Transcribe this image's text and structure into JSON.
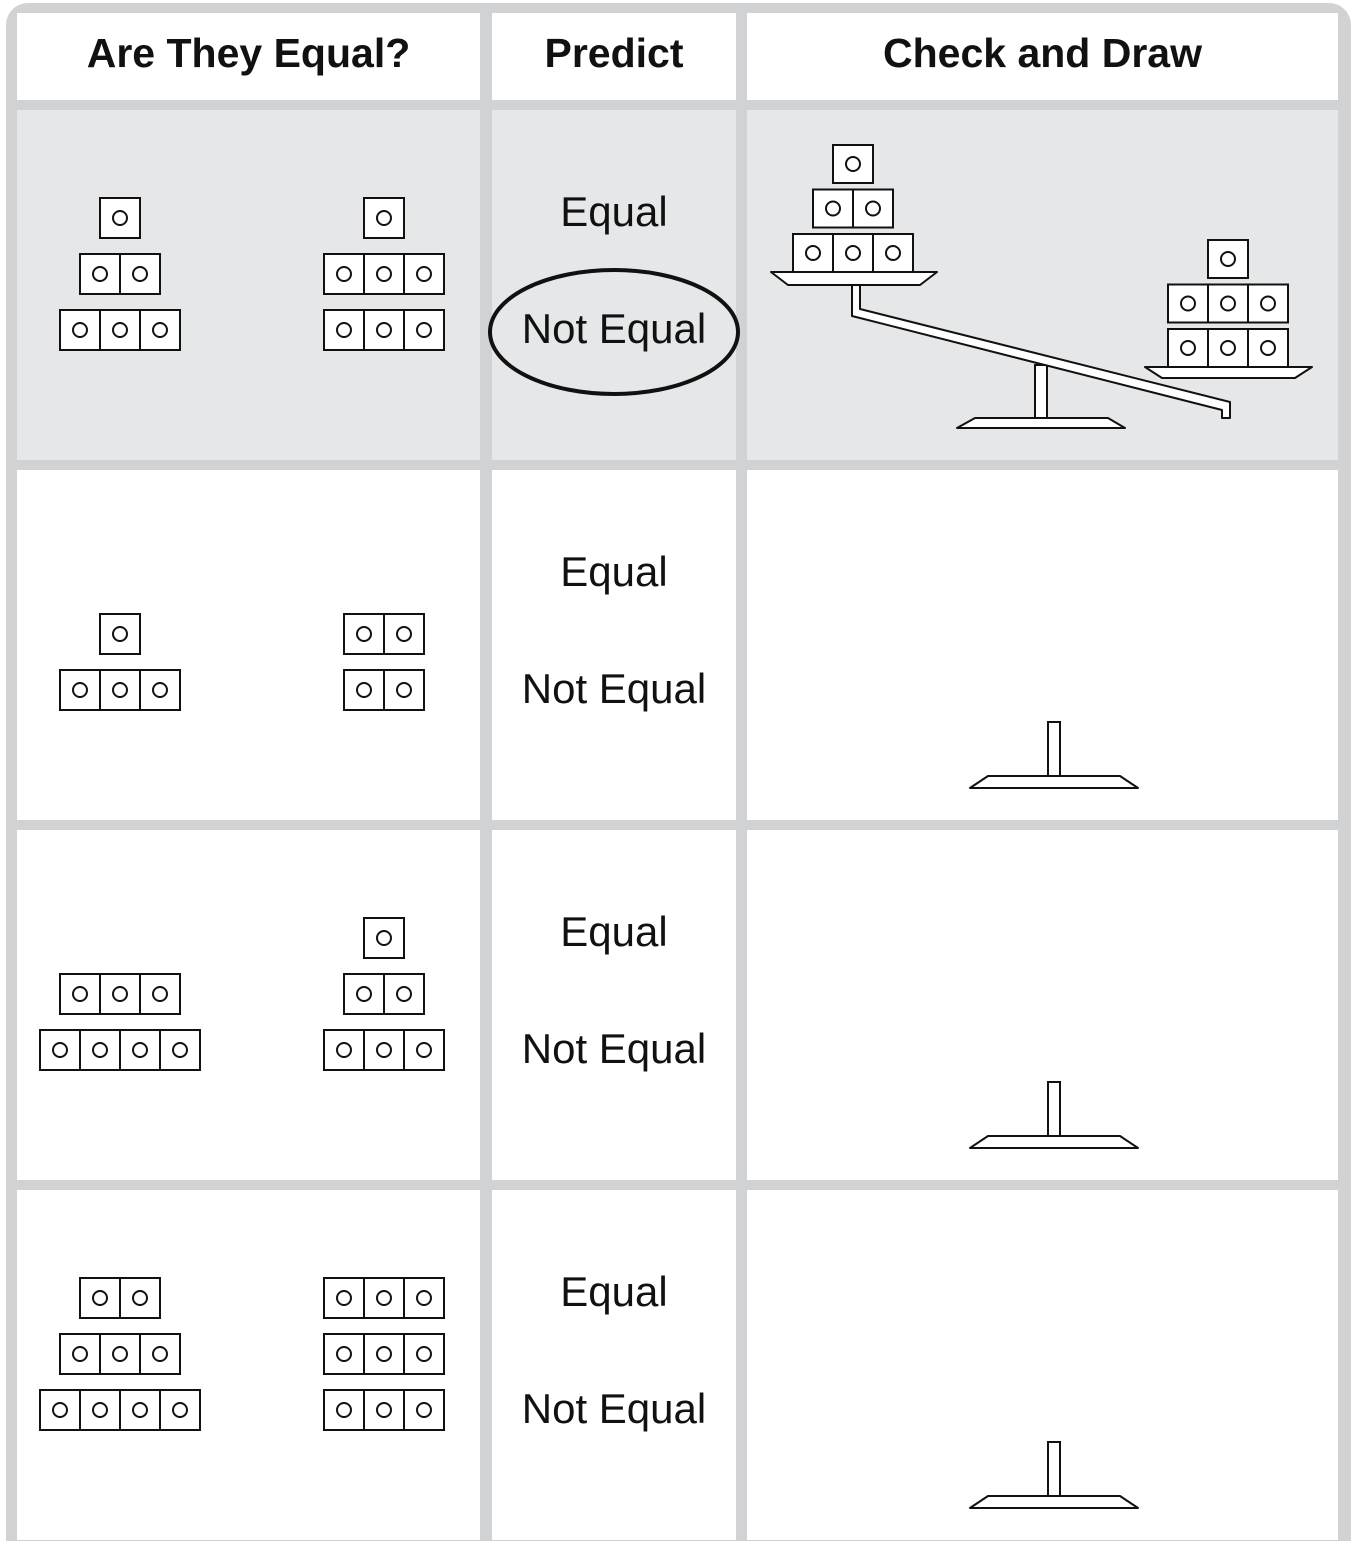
{
  "header": {
    "columns": [
      "Are They Equal?",
      "Predict",
      "Check and Draw"
    ]
  },
  "rows": [
    {
      "left": [
        1,
        2,
        3
      ],
      "right": [
        1,
        3,
        3
      ],
      "options": [
        {
          "label": "Equal"
        },
        {
          "label": "Not Equal",
          "circled": true
        }
      ],
      "drawn": true
    },
    {
      "left": [
        1,
        3
      ],
      "right": [
        2,
        2
      ],
      "options": [
        {
          "label": "Equal"
        },
        {
          "label": "Not Equal"
        }
      ]
    },
    {
      "left": [
        3,
        4
      ],
      "right": [
        1,
        2,
        3
      ],
      "options": [
        {
          "label": "Equal"
        },
        {
          "label": "Not Equal"
        }
      ]
    },
    {
      "left": [
        2,
        3,
        4
      ],
      "right": [
        3,
        3,
        3
      ],
      "options": [
        {
          "label": "Equal"
        },
        {
          "label": "Not Equal"
        }
      ]
    }
  ]
}
